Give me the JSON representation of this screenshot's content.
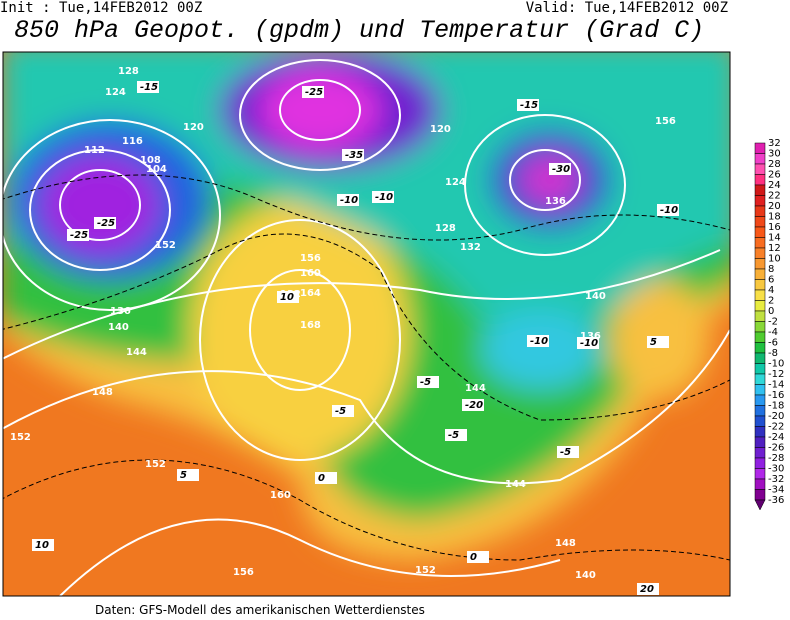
{
  "header": {
    "init": "Init : Tue,14FEB2012 00Z",
    "valid": "Valid: Tue,14FEB2012 00Z",
    "title": "850 hPa Geopot. (gpdm) und Temperatur (Grad C)"
  },
  "footer": "Daten: GFS-Modell des amerikanischen Wetterdienstes",
  "colorbar": {
    "labels": [
      32,
      30,
      28,
      26,
      24,
      22,
      20,
      18,
      16,
      14,
      12,
      10,
      8,
      6,
      4,
      2,
      0,
      -2,
      -4,
      -6,
      -8,
      -10,
      -12,
      -14,
      -16,
      -18,
      -20,
      -22,
      -24,
      -26,
      -28,
      -30,
      -32,
      -34,
      -36
    ],
    "colors": [
      "#e020b0",
      "#f040c8",
      "#ff50b0",
      "#ff3080",
      "#d01818",
      "#e02020",
      "#e83818",
      "#f04818",
      "#f85818",
      "#f86c20",
      "#f88028",
      "#f89830",
      "#f8b038",
      "#f8c840",
      "#f8e048",
      "#e8ec40",
      "#c0e040",
      "#88d838",
      "#50cc30",
      "#20c040",
      "#10b870",
      "#10c8a8",
      "#30d8d8",
      "#30c0f0",
      "#2898f0",
      "#2070e0",
      "#2050d0",
      "#3030c0",
      "#5020c0",
      "#7020d0",
      "#9020e0",
      "#b028e8",
      "#a010c0",
      "#800090",
      "#600070"
    ]
  },
  "map": {
    "geopotential_labels": [
      128,
      124,
      116,
      112,
      108,
      104,
      120,
      132,
      136,
      140,
      144,
      148,
      152,
      156,
      160,
      164,
      168,
      152,
      156,
      152,
      160,
      140,
      144,
      136,
      140,
      120,
      124,
      128,
      132,
      136,
      148,
      144,
      156,
      152
    ],
    "temperature_labels": [
      -25,
      -25,
      -30,
      -15,
      -15,
      -10,
      -10,
      -10,
      -5,
      -5,
      0,
      0,
      5,
      5,
      10,
      10,
      -5,
      -20,
      -25,
      -35,
      -10,
      -5,
      -10,
      20
    ]
  }
}
